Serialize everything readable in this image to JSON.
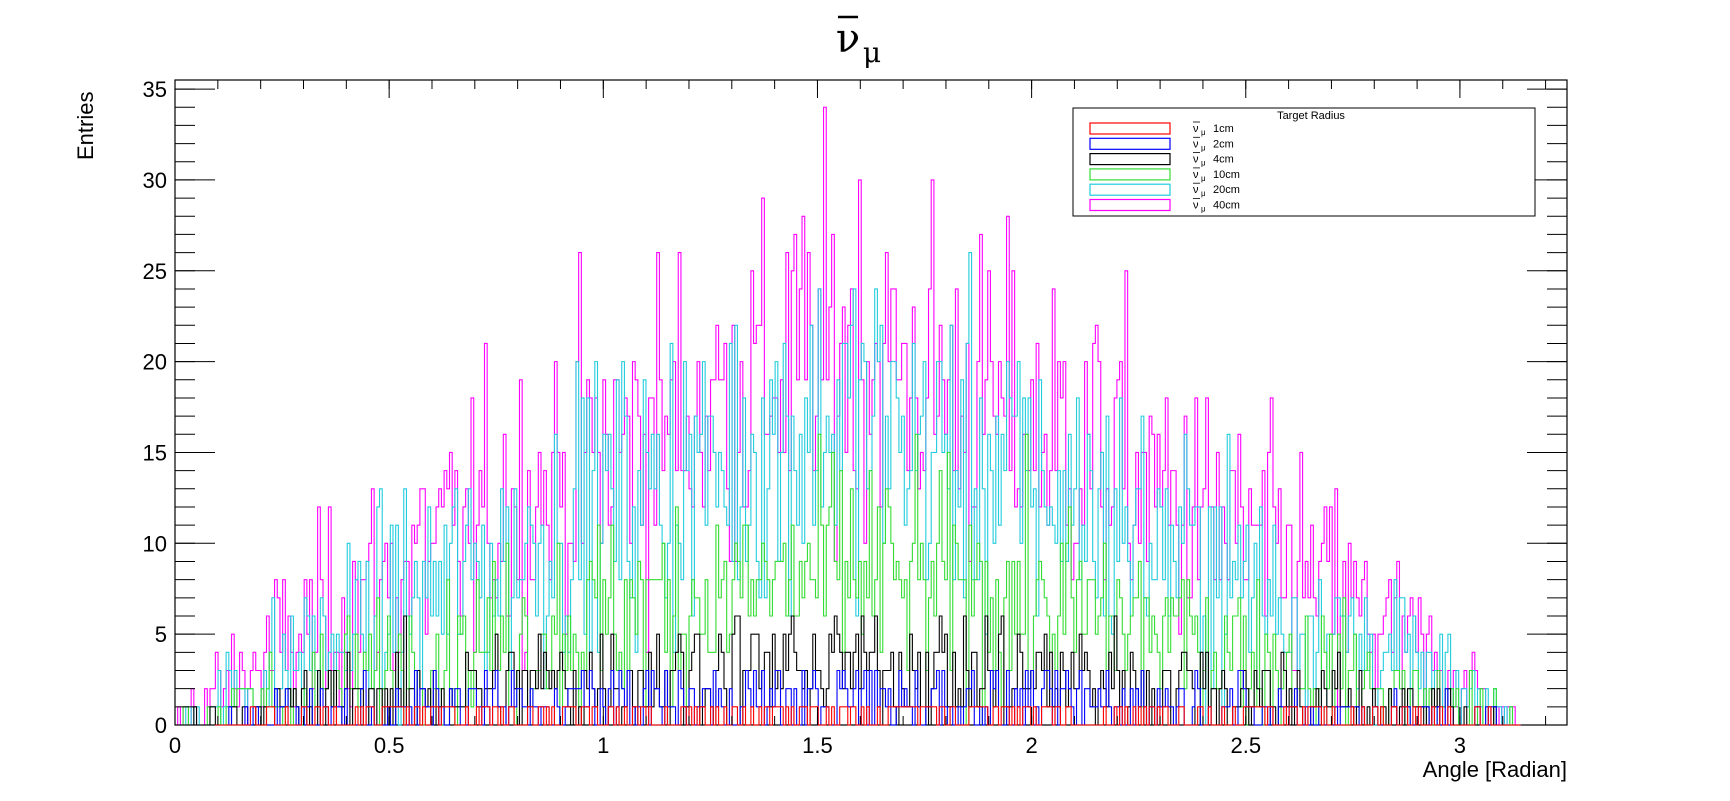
{
  "chart_data": {
    "type": "histogram",
    "title": "ν̄μ",
    "title_main": "ν",
    "title_sub": "μ",
    "xlabel": "Angle [Radian]",
    "ylabel": "Entries",
    "xlim": [
      0,
      3.25
    ],
    "ylim": [
      0,
      35.5
    ],
    "bins": 500,
    "x_ticks": [
      0,
      0.5,
      1,
      1.5,
      2,
      2.5,
      3
    ],
    "x_tick_labels": [
      "0",
      "0.5",
      "1",
      "1.5",
      "2",
      "2.5",
      "3"
    ],
    "y_ticks": [
      0,
      5,
      10,
      15,
      20,
      25,
      30,
      35
    ],
    "y_tick_labels": [
      "0",
      "5",
      "10",
      "15",
      "20",
      "25",
      "30",
      "35"
    ],
    "grid": false,
    "legend": {
      "title": "Target Radius",
      "placement": "top-right",
      "entries": [
        "1cm",
        "2cm",
        "4cm",
        "10cm",
        "20cm",
        "40cm"
      ],
      "symbol": "ν̄μ"
    },
    "series": [
      {
        "name": "1cm",
        "color": "#ff0000",
        "peak": 1,
        "description": "mostly 0-1 counts"
      },
      {
        "name": "2cm",
        "color": "#0000ff",
        "peak": 3,
        "description": "0-3 counts"
      },
      {
        "name": "4cm",
        "color": "#000000",
        "peak": 6,
        "description": "0-6 counts"
      },
      {
        "name": "10cm",
        "color": "#33dd33",
        "peak": 16,
        "description": "up to ~16 counts"
      },
      {
        "name": "20cm",
        "color": "#22ccdd",
        "peak": 27,
        "description": "up to ~27 counts"
      },
      {
        "name": "40cm",
        "color": "#ff00ff",
        "peak": 34,
        "description": "up to ~34 counts"
      }
    ],
    "series_envelope": {
      "1cm": [
        0,
        0.5,
        0.6,
        0.7,
        0.6,
        0.5,
        0
      ],
      "2cm": [
        0,
        0.7,
        1.2,
        1.4,
        1.2,
        0.7,
        0
      ],
      "4cm": [
        0,
        1.5,
        2.5,
        3.2,
        2.5,
        1.5,
        0
      ],
      "10cm": [
        0,
        3,
        6,
        8.5,
        6,
        3,
        0
      ],
      "20cm": [
        0,
        6,
        12,
        17,
        12,
        6,
        0
      ],
      "40cm": [
        0,
        8,
        15,
        21,
        15,
        8,
        0
      ]
    },
    "envelope_x": [
      0,
      0.5,
      1,
      1.57,
      2.14,
      2.64,
      3.14
    ]
  }
}
